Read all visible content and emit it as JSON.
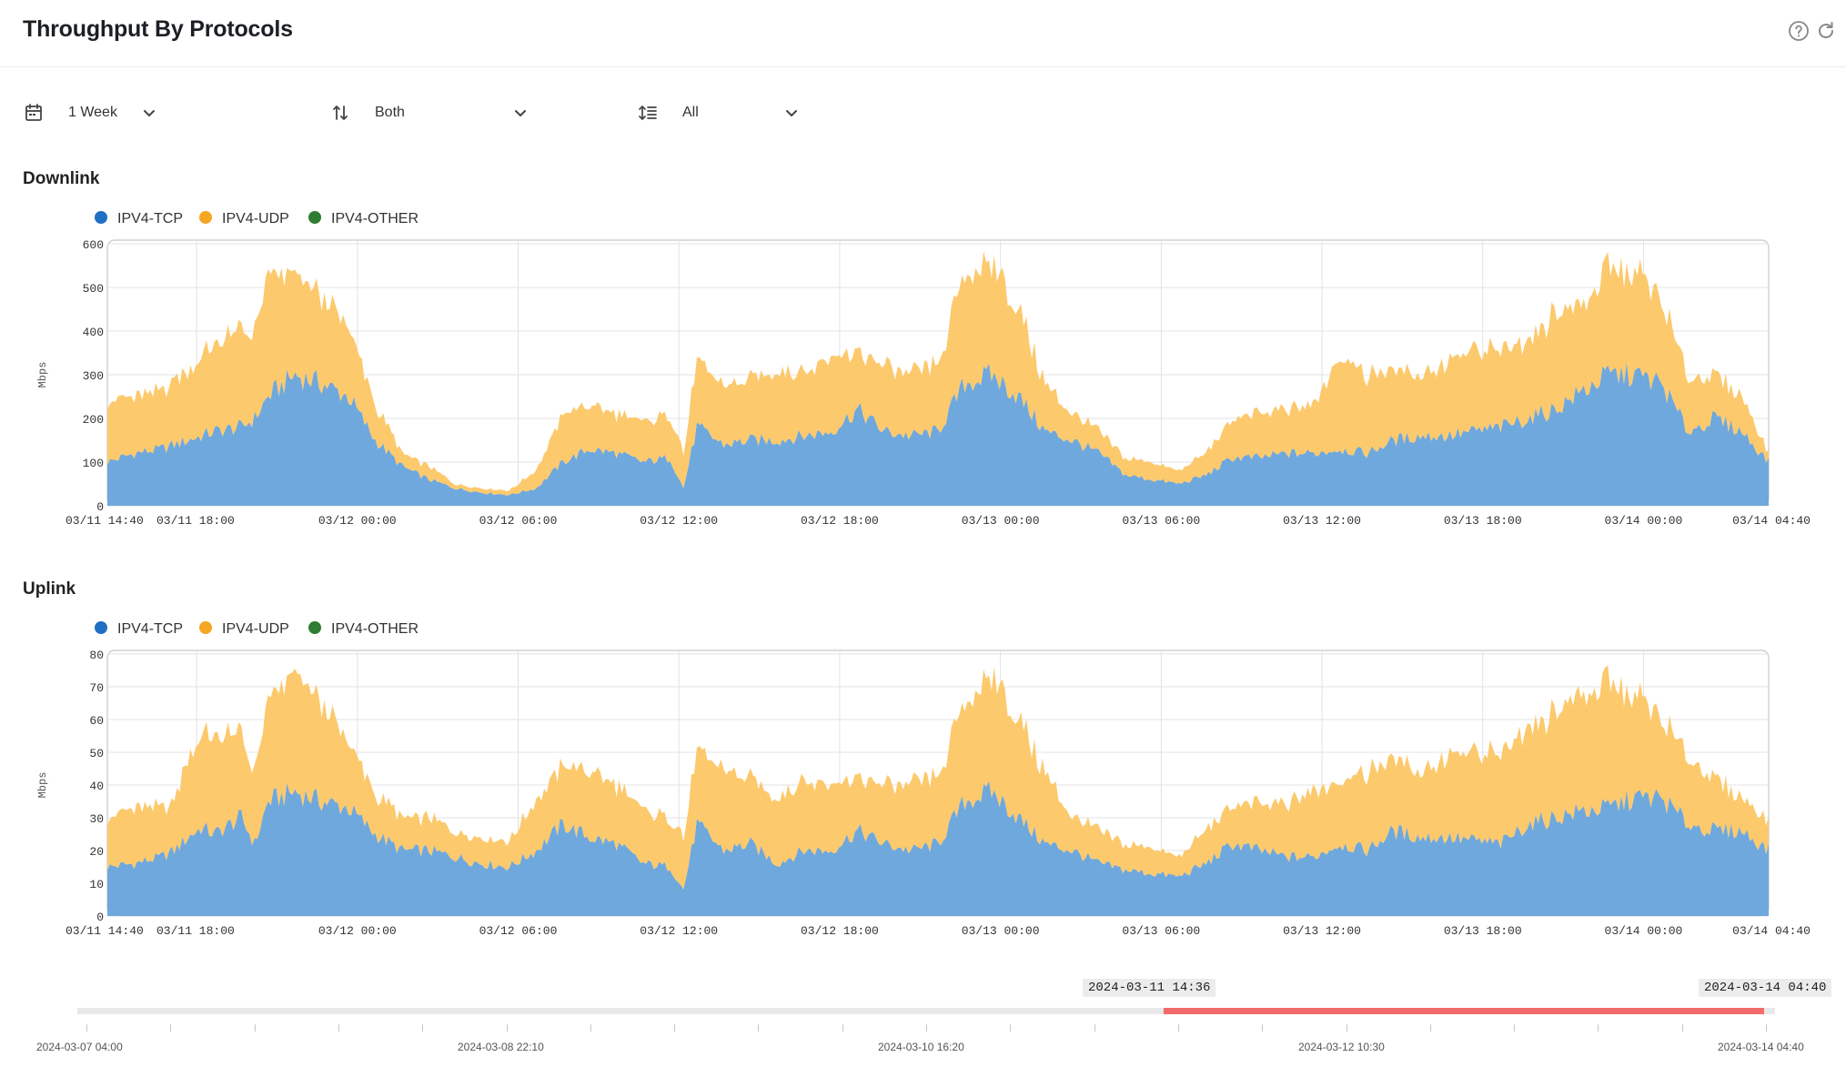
{
  "header": {
    "title": "Throughput By Protocols",
    "help_icon": "help-circle-icon",
    "refresh_icon": "refresh-icon"
  },
  "toolbar": {
    "time_range": {
      "icon": "calendar-icon",
      "value": "1 Week"
    },
    "direction": {
      "icon": "sort-arrows-icon",
      "value": "Both"
    },
    "filter": {
      "icon": "list-filter-icon",
      "value": "All"
    }
  },
  "colors": {
    "tcp": "#1f6fc4",
    "udp": "#f5a623",
    "other": "#2e7d32",
    "tcp_fill": "#6fa8dc",
    "udp_fill": "#fcc96d",
    "brush": "#f26b6b"
  },
  "chart_data": [
    {
      "id": "downlink",
      "type": "area",
      "stacked": true,
      "title": "Downlink",
      "ylabel": "Mbps",
      "ylim": [
        0,
        600
      ],
      "yticks": [
        0,
        100,
        200,
        300,
        400,
        500,
        600
      ],
      "xlim": [
        "03/11 14:40",
        "03/14 04:40"
      ],
      "x_tick_labels": [
        "03/11 14:40",
        "03/11 18:00",
        "03/12 00:00",
        "03/12 06:00",
        "03/12 12:00",
        "03/12 18:00",
        "03/13 00:00",
        "03/13 06:00",
        "03/13 12:00",
        "03/13 18:00",
        "03/14 00:00",
        "03/14 04:40"
      ],
      "legend": [
        "IPV4-TCP",
        "IPV4-UDP",
        "IPV4-OTHER"
      ],
      "grid": true,
      "x_hours": [
        0,
        1,
        2,
        2.5,
        3,
        3.5,
        4,
        5,
        5.5,
        6,
        7,
        8,
        9,
        10,
        11,
        12,
        13,
        14,
        15,
        16,
        17,
        18,
        19,
        20,
        21,
        21.5,
        22,
        23,
        24,
        25,
        26,
        27,
        28,
        29,
        30,
        31,
        32,
        33,
        34,
        35,
        36,
        37,
        38,
        39,
        40,
        41,
        42,
        43,
        44,
        45,
        46,
        47,
        48,
        49,
        50,
        51,
        52,
        53,
        54,
        55,
        56,
        57,
        58,
        59,
        60,
        61,
        62
      ],
      "series": [
        {
          "name": "IPV4-TCP",
          "values": [
            100,
            120,
            130,
            140,
            150,
            160,
            170,
            180,
            200,
            250,
            300,
            280,
            250,
            150,
            90,
            60,
            40,
            30,
            25,
            40,
            100,
            130,
            120,
            100,
            110,
            40,
            180,
            140,
            150,
            150,
            160,
            170,
            220,
            170,
            160,
            170,
            280,
            300,
            250,
            170,
            150,
            120,
            70,
            60,
            50,
            70,
            110,
            110,
            120,
            120,
            130,
            120,
            150,
            160,
            160,
            170,
            180,
            200,
            220,
            260,
            300,
            300,
            280,
            170,
            200,
            170,
            100
          ]
        },
        {
          "name": "IPV4-UDP",
          "values": [
            140,
            130,
            130,
            150,
            160,
            180,
            200,
            220,
            200,
            270,
            230,
            200,
            160,
            80,
            30,
            30,
            10,
            10,
            10,
            40,
            110,
            100,
            90,
            90,
            100,
            80,
            150,
            130,
            140,
            160,
            150,
            170,
            130,
            150,
            140,
            150,
            250,
            260,
            200,
            110,
            60,
            50,
            40,
            40,
            30,
            50,
            90,
            100,
            100,
            110,
            220,
            180,
            160,
            140,
            170,
            180,
            180,
            180,
            220,
            200,
            240,
            240,
            190,
            120,
            100,
            80,
            20
          ]
        },
        {
          "name": "IPV4-OTHER",
          "values": [
            0,
            0,
            0,
            0,
            0,
            0,
            0,
            0,
            0,
            0,
            0,
            0,
            0,
            0,
            0,
            0,
            0,
            0,
            0,
            0,
            0,
            0,
            0,
            0,
            0,
            0,
            0,
            0,
            0,
            0,
            0,
            0,
            0,
            0,
            0,
            0,
            0,
            0,
            0,
            0,
            0,
            0,
            0,
            0,
            0,
            0,
            0,
            0,
            0,
            0,
            0,
            0,
            0,
            0,
            0,
            0,
            0,
            0,
            0,
            0,
            0,
            0,
            0,
            0,
            0,
            0,
            0
          ]
        }
      ]
    },
    {
      "id": "uplink",
      "type": "area",
      "stacked": true,
      "title": "Uplink",
      "ylabel": "Mbps",
      "ylim": [
        0,
        80
      ],
      "yticks": [
        0,
        10,
        20,
        30,
        40,
        50,
        60,
        70,
        80
      ],
      "xlim": [
        "03/11 14:40",
        "03/14 04:40"
      ],
      "x_tick_labels": [
        "03/11 14:40",
        "03/11 18:00",
        "03/12 00:00",
        "03/12 06:00",
        "03/12 12:00",
        "03/12 18:00",
        "03/13 00:00",
        "03/13 06:00",
        "03/13 12:00",
        "03/13 18:00",
        "03/14 00:00",
        "03/14 04:40"
      ],
      "legend": [
        "IPV4-TCP",
        "IPV4-UDP",
        "IPV4-OTHER"
      ],
      "grid": true,
      "x_hours": [
        0,
        1,
        2,
        2.5,
        3,
        3.5,
        4,
        5,
        5.5,
        6,
        7,
        8,
        9,
        10,
        11,
        12,
        13,
        14,
        15,
        16,
        17,
        18,
        19,
        20,
        21,
        21.5,
        22,
        23,
        24,
        25,
        26,
        27,
        28,
        29,
        30,
        31,
        32,
        33,
        34,
        35,
        36,
        37,
        38,
        39,
        40,
        41,
        42,
        43,
        44,
        45,
        46,
        47,
        48,
        49,
        50,
        51,
        52,
        53,
        54,
        55,
        56,
        57,
        58,
        59,
        60,
        61,
        62
      ],
      "series": [
        {
          "name": "IPV4-TCP",
          "values": [
            15,
            16,
            18,
            20,
            24,
            27,
            25,
            30,
            22,
            35,
            38,
            35,
            33,
            25,
            20,
            20,
            18,
            16,
            15,
            20,
            28,
            24,
            22,
            16,
            15,
            8,
            28,
            20,
            22,
            16,
            20,
            20,
            26,
            22,
            20,
            22,
            35,
            38,
            30,
            22,
            20,
            16,
            14,
            13,
            12,
            16,
            22,
            20,
            18,
            18,
            22,
            20,
            26,
            24,
            24,
            23,
            22,
            28,
            30,
            32,
            33,
            36,
            36,
            28,
            26,
            26,
            20
          ]
        },
        {
          "name": "IPV4-UDP",
          "values": [
            15,
            17,
            15,
            15,
            25,
            28,
            30,
            25,
            22,
            30,
            36,
            30,
            20,
            12,
            10,
            10,
            8,
            8,
            8,
            15,
            18,
            20,
            18,
            16,
            15,
            16,
            22,
            24,
            20,
            20,
            22,
            20,
            16,
            18,
            20,
            20,
            30,
            36,
            30,
            22,
            10,
            10,
            8,
            8,
            6,
            10,
            12,
            14,
            16,
            20,
            20,
            24,
            22,
            20,
            25,
            26,
            28,
            30,
            32,
            36,
            38,
            32,
            24,
            20,
            16,
            10,
            9
          ]
        },
        {
          "name": "IPV4-OTHER",
          "values": [
            0,
            0,
            0,
            0,
            0,
            0,
            0,
            0,
            0,
            0,
            0,
            0,
            0,
            0,
            0,
            0,
            0,
            0,
            0,
            0,
            0,
            0,
            0,
            0,
            0,
            0,
            0,
            0,
            0,
            0,
            0,
            0,
            0,
            0,
            0,
            0,
            0,
            0,
            0,
            0,
            0,
            0,
            0,
            0,
            0,
            0,
            0,
            0,
            0,
            0,
            0,
            0,
            0,
            0,
            0,
            0,
            0,
            0,
            0,
            0,
            0,
            0,
            0,
            0,
            0,
            0,
            0
          ]
        }
      ]
    }
  ],
  "brush": {
    "start_label": "2024-03-11 14:36",
    "end_label": "2024-03-14 04:40",
    "selection_start_fraction": 0.64,
    "selection_end_fraction": 1.0,
    "axis_labels": [
      "2024-03-07 04:00",
      "2024-03-08 22:10",
      "2024-03-10 16:20",
      "2024-03-12 10:30",
      "2024-03-14 04:40"
    ]
  }
}
